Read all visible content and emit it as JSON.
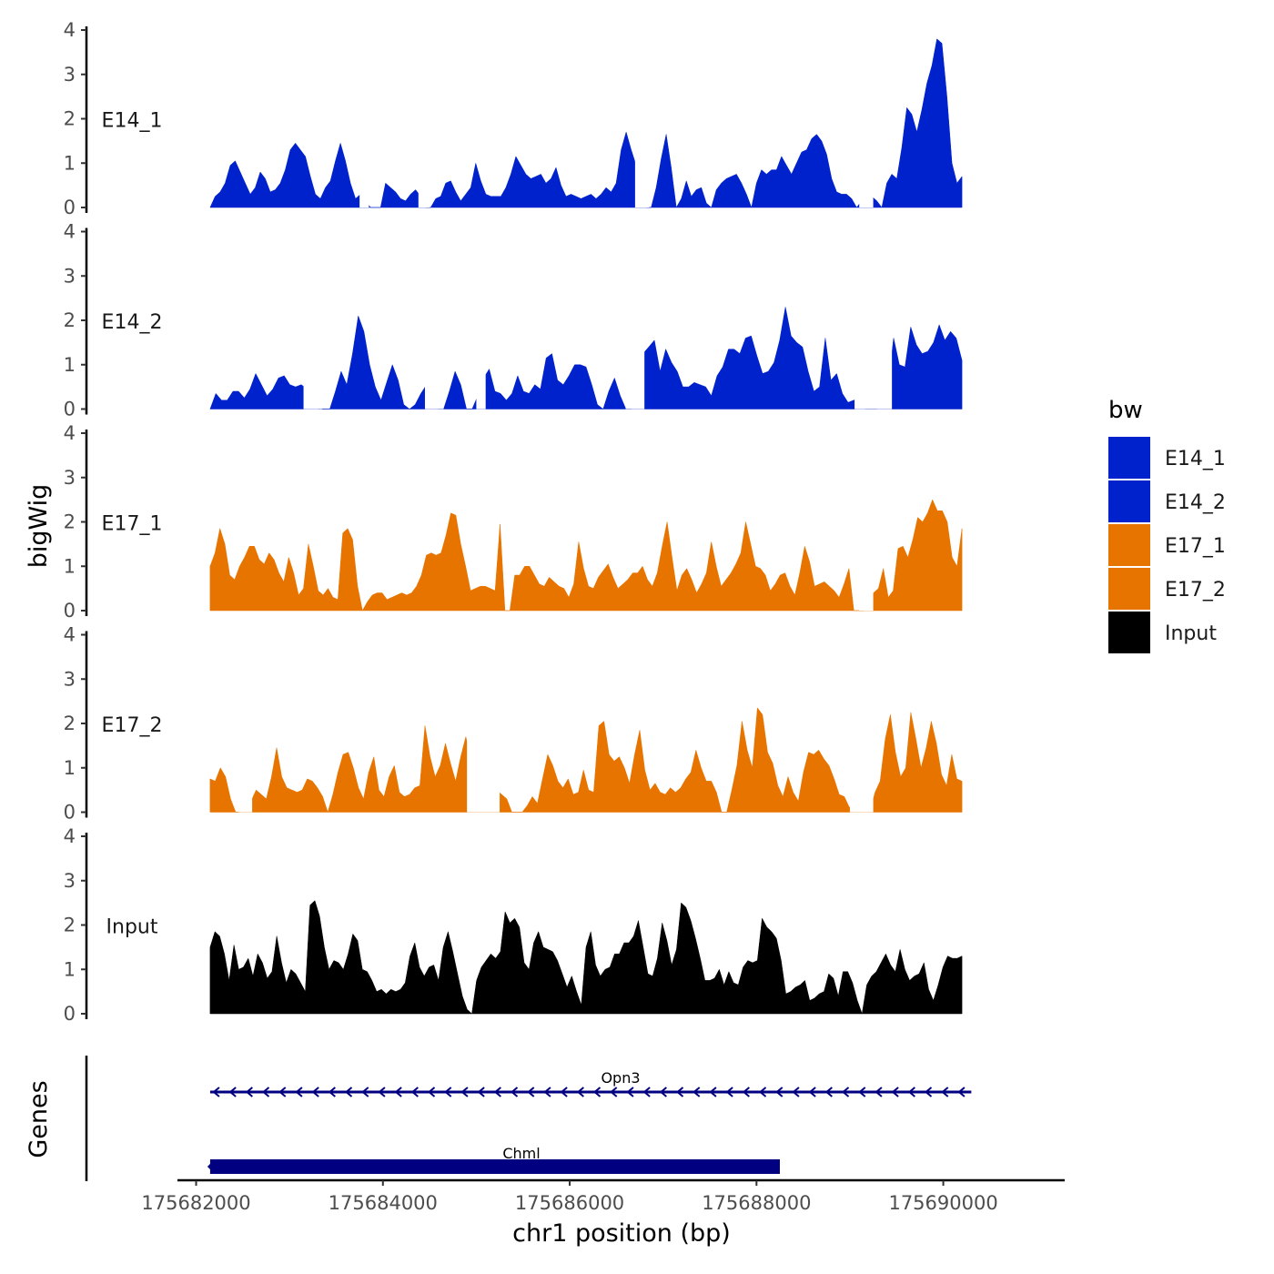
{
  "chart_data": {
    "type": "area",
    "title": "",
    "ylabel": "bigWig",
    "xlabel": "chr1 position (bp)",
    "ylim": [
      0,
      4
    ],
    "y_ticks": [
      "0",
      "1",
      "2",
      "3",
      "4"
    ],
    "xlim": [
      175681800,
      175691300
    ],
    "x_ticks": [
      175682000,
      175684000,
      175686000,
      175688000,
      175690000
    ],
    "x_tick_labels": [
      "175682000",
      "175684000",
      "175686000",
      "175688000",
      "175690000"
    ],
    "data_xrange": [
      175682150,
      175690200
    ],
    "series": [
      {
        "name": "E14_1",
        "color": "#0022CC",
        "values": [
          0,
          0.25,
          0.35,
          0.55,
          0.95,
          1.05,
          0.8,
          0.55,
          0.3,
          0.45,
          0.8,
          0.65,
          0.35,
          0.4,
          0.55,
          0.85,
          1.3,
          1.45,
          1.3,
          1.15,
          0.7,
          0.3,
          0.2,
          0.45,
          0.6,
          1.05,
          1.45,
          1.05,
          0.55,
          0.2,
          0.3,
          0.15,
          0,
          0,
          0,
          0.55,
          0.45,
          0.35,
          0.2,
          0.15,
          0.3,
          0.4,
          0.25,
          0,
          0,
          0.2,
          0.25,
          0.55,
          0.6,
          0.35,
          0.15,
          0.3,
          0.45,
          1.0,
          0.6,
          0.3,
          0.25,
          0.25,
          0.25,
          0.45,
          0.75,
          1.15,
          0.95,
          0.75,
          0.65,
          0.7,
          0.75,
          0.55,
          0.65,
          0.9,
          0.5,
          0.25,
          0.3,
          0.25,
          0.2,
          0.25,
          0.3,
          0.2,
          0.3,
          0.45,
          0.35,
          0.55,
          1.3,
          1.7,
          1.3,
          0.95,
          0.3,
          0,
          0,
          0.45,
          1.1,
          1.65,
          0.9,
          0,
          0.2,
          0.6,
          0.25,
          0.4,
          0.45,
          0.1,
          0,
          0.4,
          0.55,
          0.65,
          0.7,
          0.75,
          0.55,
          0.3,
          0,
          0.55,
          0.85,
          0.75,
          0.85,
          0.85,
          1.15,
          0.95,
          0.75,
          1.0,
          1.25,
          1.3,
          1.55,
          1.65,
          1.5,
          1.2,
          0.65,
          0.35,
          0.3,
          0.3,
          0.2,
          0,
          0.15,
          0.3,
          0.25,
          0.15,
          0,
          0.55,
          0.75,
          0.65,
          1.35,
          2.25,
          2.1,
          1.7,
          2.2,
          2.8,
          3.2,
          3.8,
          3.7,
          2.5,
          1.0,
          0.55,
          0.7
        ],
        "gaps": [
          [
            175683750,
            175683850
          ],
          [
            175684380,
            175684500
          ],
          [
            175686700,
            175686850
          ],
          [
            175689100,
            175689250
          ]
        ]
      },
      {
        "name": "E14_2",
        "color": "#0022CC",
        "values": [
          0,
          0.35,
          0.2,
          0.2,
          0.4,
          0.4,
          0.25,
          0.45,
          0.8,
          0.55,
          0.3,
          0.45,
          0.7,
          0.75,
          0.55,
          0.5,
          0.55,
          0.45,
          0.3,
          0,
          0,
          0,
          0.4,
          0.85,
          0.55,
          1.25,
          2.1,
          1.75,
          1.0,
          0.5,
          0.2,
          0.6,
          1.0,
          0.65,
          0.1,
          0,
          0.1,
          0.35,
          0.55,
          0.9,
          0,
          0,
          0.4,
          0.85,
          0.55,
          0,
          0,
          0.3,
          0.7,
          0.9,
          0.4,
          0.35,
          0.2,
          0.35,
          0.75,
          0.4,
          0.35,
          0.55,
          0.45,
          1.15,
          1.25,
          0.65,
          0.55,
          0.75,
          1.0,
          1.0,
          0.95,
          0.55,
          0.1,
          0,
          0.4,
          0.7,
          0.3,
          0,
          0,
          0.45,
          1.25,
          1.4,
          1.55,
          0.85,
          1.35,
          1.05,
          0.85,
          0.5,
          0.5,
          0.6,
          0.55,
          0.5,
          0.3,
          0.75,
          0.95,
          1.35,
          1.35,
          1.25,
          1.6,
          1.65,
          1.2,
          0.8,
          0.85,
          1.05,
          1.55,
          2.3,
          1.65,
          1.5,
          1.4,
          0.85,
          0.4,
          0.5,
          1.6,
          0.65,
          0.8,
          0.35,
          0.15,
          0.2,
          0.25,
          0,
          0,
          0,
          0.3,
          0.5,
          1.6,
          1.0,
          0.95,
          1.85,
          1.45,
          1.25,
          1.3,
          1.5,
          1.9,
          1.55,
          1.75,
          1.6,
          1.1
        ],
        "gaps": [
          [
            175683150,
            175683350
          ],
          [
            175684450,
            175684650
          ],
          [
            175685000,
            175685100
          ],
          [
            175686600,
            175686800
          ],
          [
            175689050,
            175689450
          ]
        ]
      },
      {
        "name": "E17_1",
        "color": "#E87400",
        "values": [
          1.0,
          1.3,
          1.85,
          1.5,
          0.8,
          0.7,
          1.0,
          1.2,
          1.45,
          1.45,
          1.15,
          1.05,
          1.3,
          1.15,
          0.85,
          0.65,
          1.2,
          0.85,
          0.35,
          0.5,
          1.5,
          1.0,
          0.45,
          0.35,
          0.5,
          0.3,
          0.25,
          1.75,
          1.85,
          1.6,
          0.55,
          0,
          0.2,
          0.35,
          0.4,
          0.4,
          0.25,
          0.3,
          0.35,
          0.4,
          0.35,
          0.4,
          0.55,
          0.8,
          1.25,
          1.3,
          1.25,
          1.3,
          1.7,
          2.2,
          2.15,
          1.5,
          1.0,
          0.45,
          0.5,
          0.55,
          0.55,
          0.5,
          0.45,
          1.95,
          0,
          0,
          0.8,
          0.8,
          1.0,
          1.0,
          0.8,
          0.6,
          0.55,
          0.75,
          0.65,
          0.55,
          0.5,
          0.3,
          0.6,
          1.55,
          0.95,
          0.55,
          0.5,
          0.75,
          0.9,
          1.05,
          0.75,
          0.5,
          0.6,
          0.7,
          0.85,
          0.85,
          1.0,
          0.7,
          0.55,
          0.85,
          1.45,
          2.0,
          1.2,
          0.45,
          0.8,
          0.95,
          0.7,
          0.4,
          0.6,
          0.85,
          1.55,
          1.0,
          0.55,
          0.7,
          0.85,
          1.05,
          1.3,
          2.0,
          1.5,
          1.0,
          0.95,
          0.8,
          0.45,
          0.6,
          0.8,
          0.85,
          0.55,
          0.35,
          0.85,
          1.45,
          1.1,
          0.55,
          0.6,
          0.65,
          0.55,
          0.45,
          0.3,
          0.6,
          0.95,
          0,
          0,
          0,
          0.3,
          0.4,
          0.5,
          0.95,
          0.3,
          0.45,
          1.4,
          1.45,
          1.2,
          1.6,
          2.1,
          2.0,
          2.2,
          2.5,
          2.25,
          2.25,
          2.0,
          1.2,
          1.0,
          1.85
        ],
        "gaps": [
          [
            175689100,
            175689250
          ]
        ]
      },
      {
        "name": "E17_2",
        "color": "#E87400",
        "values": [
          0.75,
          0.7,
          1.0,
          0.8,
          0.3,
          0,
          0,
          0.2,
          0.25,
          0.5,
          0.4,
          0.3,
          0.8,
          1.45,
          0.8,
          0.55,
          0.5,
          0.45,
          0.5,
          0.75,
          0.7,
          0.55,
          0.35,
          0,
          0.4,
          0.9,
          1.3,
          1.35,
          1.0,
          0.55,
          0.3,
          0.9,
          1.25,
          0.5,
          0.35,
          0.8,
          1.05,
          0.45,
          0.35,
          0.4,
          0.55,
          0.6,
          1.95,
          1.25,
          0.8,
          1.05,
          1.55,
          1.1,
          0.7,
          1.25,
          1.7,
          1.15,
          0.55,
          0.35,
          0.9,
          0.75,
          0.5,
          0.4,
          0.3,
          0,
          0,
          0,
          0.15,
          0.35,
          0.2,
          0.75,
          1.3,
          1.05,
          0.7,
          0.55,
          0.75,
          0.4,
          0.45,
          0.95,
          0.5,
          0.45,
          1.95,
          2.05,
          1.3,
          1.15,
          1.25,
          1.0,
          0.65,
          1.3,
          1.85,
          0.95,
          0.5,
          0.65,
          0.45,
          0.4,
          0.55,
          0.45,
          0.55,
          0.75,
          0.9,
          1.4,
          1.0,
          0.7,
          0.7,
          0.45,
          0,
          0,
          0.5,
          1.05,
          2.05,
          1.4,
          1.0,
          2.35,
          2.2,
          1.35,
          1.1,
          0.6,
          0.35,
          0.8,
          0.45,
          0.25,
          0.9,
          1.35,
          1.3,
          1.4,
          1.2,
          1.05,
          0.75,
          0.4,
          0.35,
          0.1,
          0.3,
          0,
          0.3,
          0,
          0.45,
          0.7,
          1.65,
          2.2,
          1.35,
          0.8,
          1.0,
          2.25,
          1.65,
          1.0,
          1.45,
          2.05,
          1.55,
          0.85,
          0.6,
          1.3,
          0.75,
          0.7
        ],
        "gaps": [
          [
            175682450,
            175682600
          ],
          [
            175684900,
            175685250
          ],
          [
            175689000,
            175689250
          ]
        ]
      },
      {
        "name": "Input",
        "color": "#000000",
        "values": [
          1.5,
          1.85,
          1.75,
          1.35,
          0.75,
          1.55,
          1.0,
          1.05,
          1.25,
          0.85,
          1.35,
          1.15,
          0.8,
          0.95,
          1.75,
          1.15,
          0.7,
          1.0,
          0.9,
          0.7,
          0.5,
          2.45,
          2.55,
          2.2,
          1.5,
          1.0,
          1.2,
          1.15,
          1.0,
          1.35,
          1.8,
          1.65,
          1.0,
          0.95,
          0.75,
          0.5,
          0.55,
          0.45,
          0.55,
          0.5,
          0.55,
          0.7,
          1.3,
          1.6,
          1.05,
          0.85,
          1.05,
          1.1,
          0.75,
          1.5,
          1.85,
          1.4,
          0.9,
          0.4,
          0.1,
          0,
          0.75,
          1.05,
          1.2,
          1.35,
          1.25,
          1.4,
          2.3,
          2.05,
          2.15,
          1.95,
          1.15,
          1.0,
          1.6,
          1.85,
          1.5,
          1.45,
          1.4,
          1.2,
          0.9,
          0.6,
          0.85,
          0.5,
          0.2,
          1.5,
          1.85,
          1.1,
          0.85,
          1.0,
          1.05,
          1.35,
          1.35,
          1.6,
          1.6,
          1.75,
          2.1,
          1.5,
          0.9,
          0.85,
          1.25,
          2.05,
          1.65,
          1.1,
          1.45,
          2.5,
          2.4,
          2.1,
          1.7,
          1.25,
          0.75,
          0.75,
          0.8,
          1.0,
          0.65,
          0.95,
          0.7,
          0.65,
          1.05,
          1.2,
          1.15,
          1.2,
          2.15,
          1.95,
          1.85,
          1.7,
          1.2,
          0.45,
          0.5,
          0.6,
          0.65,
          0.75,
          0.3,
          0.35,
          0.45,
          0.5,
          0.9,
          0.8,
          0.4,
          0.95,
          0.95,
          0.7,
          0.3,
          0,
          0.65,
          0.85,
          0.95,
          1.15,
          1.35,
          1.1,
          0.95,
          1.45,
          1.0,
          0.75,
          0.85,
          0.9,
          1.15,
          0.55,
          0.3,
          0.65,
          1.05,
          1.3,
          1.25,
          1.25,
          1.3
        ],
        "gaps": []
      }
    ],
    "gene_track_label": "Genes",
    "genes": [
      {
        "name": "Opn3",
        "start": 175682150,
        "end": 175690300,
        "strand": "-",
        "style": "line",
        "color": "#000080"
      },
      {
        "name": "Chml",
        "start": 175682150,
        "end": 175688250,
        "strand": "-",
        "style": "box",
        "color": "#000080"
      }
    ],
    "legend": {
      "title": "bw",
      "position": "right",
      "entries": [
        {
          "label": "E14_1",
          "color": "#0022CC"
        },
        {
          "label": "E14_2",
          "color": "#0022CC"
        },
        {
          "label": "E17_1",
          "color": "#E87400"
        },
        {
          "label": "E17_2",
          "color": "#E87400"
        },
        {
          "label": "Input",
          "color": "#000000"
        }
      ]
    }
  }
}
